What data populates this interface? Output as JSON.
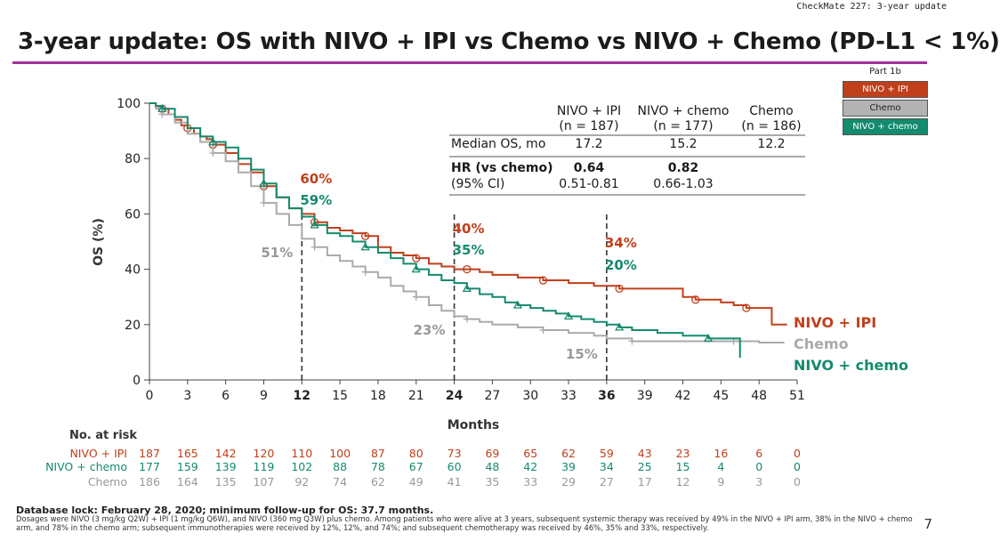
{
  "header": {
    "top_right": "CheckMate 227: 3-year update",
    "title": "3-year update: OS with NIVO + IPI vs Chemo vs NIVO + Chemo (PD-L1 < 1%)",
    "accent_color": "#a3309a"
  },
  "legend": {
    "header": "Part 1b",
    "items": [
      {
        "label": "NIVO + IPI",
        "color": "#c0401c"
      },
      {
        "label": "Chemo",
        "color": "#b3b3b3"
      },
      {
        "label": "NIVO + chemo",
        "color": "#148a6e"
      }
    ]
  },
  "stats_table": {
    "col_headers": [
      [
        "NIVO + IPI",
        "(n = 187)"
      ],
      [
        "NIVO + chemo",
        "(n = 177)"
      ],
      [
        "Chemo",
        "(n = 186)"
      ]
    ],
    "median_label": "Median OS, mo",
    "median_values": [
      "17.2",
      "15.2",
      "12.2"
    ],
    "hr_label": "HR (vs chemo)",
    "ci_label": "(95% CI)",
    "hr_values": [
      "0.64",
      "0.82"
    ],
    "ci_values": [
      "0.51-0.81",
      "0.66-1.03"
    ]
  },
  "chart_data": {
    "type": "line",
    "ylabel": "OS (%)",
    "xlabel": "Months",
    "xlim": [
      0,
      51
    ],
    "ylim": [
      0,
      100
    ],
    "xticks": [
      "0",
      "3",
      "6",
      "9",
      "12",
      "15",
      "18",
      "21",
      "24",
      "27",
      "30",
      "33",
      "36",
      "39",
      "42",
      "45",
      "48",
      "51"
    ],
    "yticks": [
      "0",
      "20",
      "40",
      "60",
      "80",
      "100"
    ],
    "bold_xticks": [
      "12",
      "24",
      "36"
    ],
    "landmarks": [
      12,
      24,
      36
    ],
    "series": [
      {
        "name": "NIVO + IPI",
        "color": "#c0401c",
        "points": [
          [
            0,
            100
          ],
          [
            0.5,
            99
          ],
          [
            1,
            98
          ],
          [
            1.5,
            96
          ],
          [
            2,
            94
          ],
          [
            2.5,
            92
          ],
          [
            3,
            91
          ],
          [
            3.5,
            89
          ],
          [
            4,
            88
          ],
          [
            4.5,
            87
          ],
          [
            5,
            85
          ],
          [
            6,
            82
          ],
          [
            7,
            78
          ],
          [
            8,
            75
          ],
          [
            9,
            70
          ],
          [
            10,
            66
          ],
          [
            11,
            62
          ],
          [
            12,
            60
          ],
          [
            13,
            57
          ],
          [
            14,
            55
          ],
          [
            15,
            54
          ],
          [
            16,
            53
          ],
          [
            17,
            52
          ],
          [
            18,
            48
          ],
          [
            19,
            46
          ],
          [
            20,
            45
          ],
          [
            21,
            44
          ],
          [
            22,
            42
          ],
          [
            23,
            41
          ],
          [
            24,
            40
          ],
          [
            25,
            40
          ],
          [
            26,
            39
          ],
          [
            27,
            38
          ],
          [
            29,
            37
          ],
          [
            31,
            36
          ],
          [
            33,
            35
          ],
          [
            35,
            34
          ],
          [
            36,
            34
          ],
          [
            37,
            33
          ],
          [
            39,
            33
          ],
          [
            41,
            33
          ],
          [
            42,
            30
          ],
          [
            43,
            29
          ],
          [
            44,
            29
          ],
          [
            45,
            28
          ],
          [
            46,
            27
          ],
          [
            47,
            26
          ],
          [
            48.5,
            26
          ],
          [
            49,
            20
          ],
          [
            50.2,
            20
          ]
        ],
        "annotations": [
          {
            "x": 12,
            "label": "60%"
          },
          {
            "x": 24,
            "label": "40%"
          },
          {
            "x": 36,
            "label": "34%"
          }
        ],
        "end_label": "NIVO + IPI"
      },
      {
        "name": "Chemo",
        "color": "#aaaaaa",
        "points": [
          [
            0,
            100
          ],
          [
            0.5,
            98
          ],
          [
            1,
            96
          ],
          [
            2,
            93
          ],
          [
            3,
            89
          ],
          [
            4,
            86
          ],
          [
            5,
            82
          ],
          [
            6,
            79
          ],
          [
            7,
            75
          ],
          [
            8,
            70
          ],
          [
            9,
            64
          ],
          [
            10,
            60
          ],
          [
            11,
            56
          ],
          [
            12,
            51
          ],
          [
            13,
            48
          ],
          [
            14,
            45
          ],
          [
            15,
            43
          ],
          [
            16,
            41
          ],
          [
            17,
            39
          ],
          [
            18,
            37
          ],
          [
            19,
            34
          ],
          [
            20,
            32
          ],
          [
            21,
            30
          ],
          [
            22,
            27
          ],
          [
            23,
            25
          ],
          [
            24,
            23
          ],
          [
            25,
            22
          ],
          [
            26,
            21
          ],
          [
            27,
            20
          ],
          [
            29,
            19
          ],
          [
            31,
            18
          ],
          [
            33,
            17
          ],
          [
            35,
            16
          ],
          [
            36,
            15
          ],
          [
            38,
            14
          ],
          [
            40,
            14
          ],
          [
            42,
            14
          ],
          [
            44,
            14
          ],
          [
            46,
            14
          ],
          [
            48,
            13.5
          ],
          [
            50,
            13.5
          ]
        ],
        "annotations": [
          {
            "x": 12,
            "label": "51%"
          },
          {
            "x": 24,
            "label": "23%"
          },
          {
            "x": 36,
            "label": "15%"
          }
        ],
        "end_label": "Chemo"
      },
      {
        "name": "NIVO + chemo",
        "color": "#148a6e",
        "points": [
          [
            0,
            100
          ],
          [
            0.5,
            99
          ],
          [
            1,
            98
          ],
          [
            2,
            95
          ],
          [
            3,
            91
          ],
          [
            4,
            88
          ],
          [
            5,
            86
          ],
          [
            6,
            84
          ],
          [
            7,
            80
          ],
          [
            8,
            76
          ],
          [
            9,
            71
          ],
          [
            10,
            66
          ],
          [
            11,
            62
          ],
          [
            12,
            59
          ],
          [
            13,
            56
          ],
          [
            14,
            53
          ],
          [
            15,
            52
          ],
          [
            16,
            50
          ],
          [
            17,
            48
          ],
          [
            18,
            46
          ],
          [
            19,
            44
          ],
          [
            20,
            42
          ],
          [
            21,
            40
          ],
          [
            22,
            38
          ],
          [
            23,
            36
          ],
          [
            24,
            35
          ],
          [
            25,
            33
          ],
          [
            26,
            31
          ],
          [
            27,
            30
          ],
          [
            28,
            28
          ],
          [
            29,
            27
          ],
          [
            30,
            26
          ],
          [
            31,
            25
          ],
          [
            32,
            24
          ],
          [
            33,
            23
          ],
          [
            34,
            22
          ],
          [
            35,
            21
          ],
          [
            36,
            20
          ],
          [
            37,
            19
          ],
          [
            38,
            18
          ],
          [
            40,
            17
          ],
          [
            42,
            16
          ],
          [
            44,
            15
          ],
          [
            46,
            15
          ],
          [
            46.5,
            15
          ],
          [
            46.5,
            8
          ]
        ],
        "annotations": [
          {
            "x": 12,
            "label": "59%"
          },
          {
            "x": 24,
            "label": "35%"
          },
          {
            "x": 36,
            "label": "20%"
          }
        ],
        "end_label": "NIVO + chemo"
      }
    ]
  },
  "at_risk": {
    "header": "No. at risk",
    "rows": [
      {
        "label": "NIVO + IPI",
        "color": "#c0401c",
        "values": [
          "187",
          "165",
          "142",
          "120",
          "110",
          "100",
          "87",
          "80",
          "73",
          "69",
          "65",
          "62",
          "59",
          "43",
          "23",
          "16",
          "6",
          "0"
        ]
      },
      {
        "label": "NIVO + chemo",
        "color": "#148a6e",
        "values": [
          "177",
          "159",
          "139",
          "119",
          "102",
          "88",
          "78",
          "67",
          "60",
          "48",
          "42",
          "39",
          "34",
          "25",
          "15",
          "4",
          "0",
          "0"
        ]
      },
      {
        "label": "Chemo",
        "color": "#999999",
        "values": [
          "186",
          "164",
          "135",
          "107",
          "92",
          "74",
          "62",
          "49",
          "41",
          "35",
          "33",
          "29",
          "27",
          "17",
          "12",
          "9",
          "3",
          "0"
        ]
      }
    ]
  },
  "footer": {
    "lock": "Database lock: February 28, 2020; minimum follow-up for OS: 37.7 months.",
    "note": "Dosages were NIVO (3 mg/kg Q2W) + IPI (1 mg/kg Q6W), and NIVO (360 mg Q3W) plus chemo. Among patients who were alive at 3 years, subsequent systemic therapy was received by 49% in the NIVO + IPI arm, 38% in the NIVO + chemo arm, and 78% in the chemo arm; subsequent immunotherapies were received by 12%, 12%, and 74%; and subsequent chemotherapy was received by 46%, 35% and 33%, respectively.",
    "page": "7"
  }
}
